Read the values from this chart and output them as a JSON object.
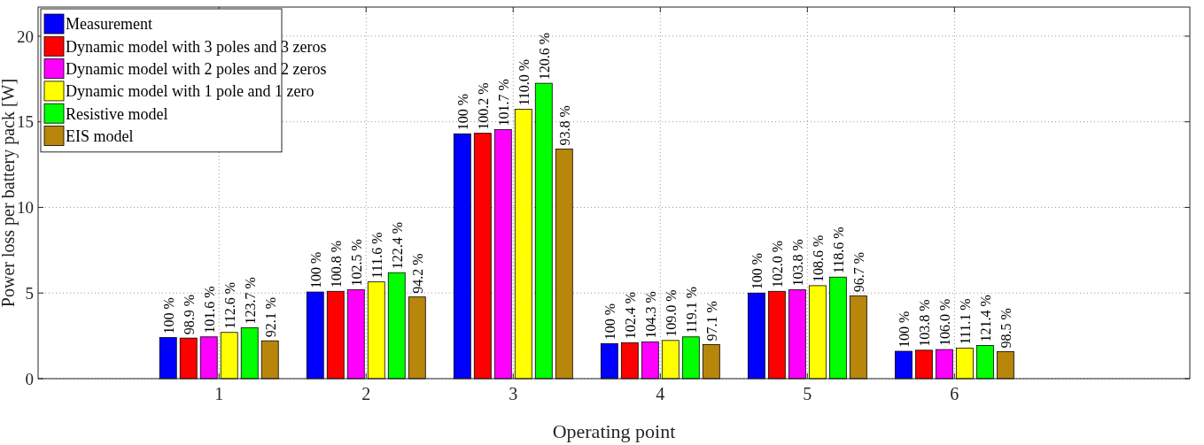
{
  "chart_data": {
    "type": "bar",
    "xlabel": "Operating point",
    "ylabel": "Power loss per battery pack [W]",
    "categories": [
      "1",
      "2",
      "3",
      "4",
      "5",
      "6"
    ],
    "ylim": [
      0,
      21.7
    ],
    "yticks": [
      0,
      5,
      10,
      15,
      20
    ],
    "grid": true,
    "legend": "top left",
    "series": [
      {
        "name": "Measurement",
        "color": "#0000ff",
        "values": [
          2.4,
          5.06,
          14.3,
          2.05,
          5.0,
          1.6
        ]
      },
      {
        "name": "Dynamic model with 3 poles and 3 zeros",
        "color": "#ff0000",
        "values": [
          2.37,
          5.1,
          14.33,
          2.1,
          5.1,
          1.66
        ]
      },
      {
        "name": "Dynamic model with 2 poles and 2 zeros",
        "color": "#ff00ff",
        "values": [
          2.44,
          5.19,
          14.54,
          2.14,
          5.19,
          1.7
        ]
      },
      {
        "name": "Dynamic model with 1 pole and 1 zero",
        "color": "#ffff00",
        "values": [
          2.7,
          5.65,
          15.73,
          2.23,
          5.43,
          1.78
        ]
      },
      {
        "name": "Resistive model",
        "color": "#00ff00",
        "values": [
          2.97,
          6.19,
          17.25,
          2.44,
          5.93,
          1.94
        ]
      },
      {
        "name": "EIS model",
        "color": "#b8860b",
        "values": [
          2.21,
          4.77,
          13.41,
          1.99,
          4.84,
          1.58
        ]
      }
    ],
    "annotations": [
      "100 %",
      "98.9 %",
      "101.6 %",
      "112.6 %",
      "123.7 %",
      "92.1 %",
      "100 %",
      "100.8 %",
      "102.5 %",
      "111.6 %",
      "122.4 %",
      "94.2 %",
      "100 %",
      "100.2 %",
      "101.7 %",
      "110.0 %",
      "120.6 %",
      "93.8 %",
      "100 %",
      "102.4 %",
      "104.3 %",
      "109.0 %",
      "119.1 %",
      "97.1 %",
      "100 %",
      "102.0 %",
      "103.8 %",
      "108.6 %",
      "118.6 %",
      "96.7 %",
      "100 %",
      "103.8 %",
      "106.0 %",
      "111.1 %",
      "121.4 %",
      "98.5 %"
    ]
  }
}
